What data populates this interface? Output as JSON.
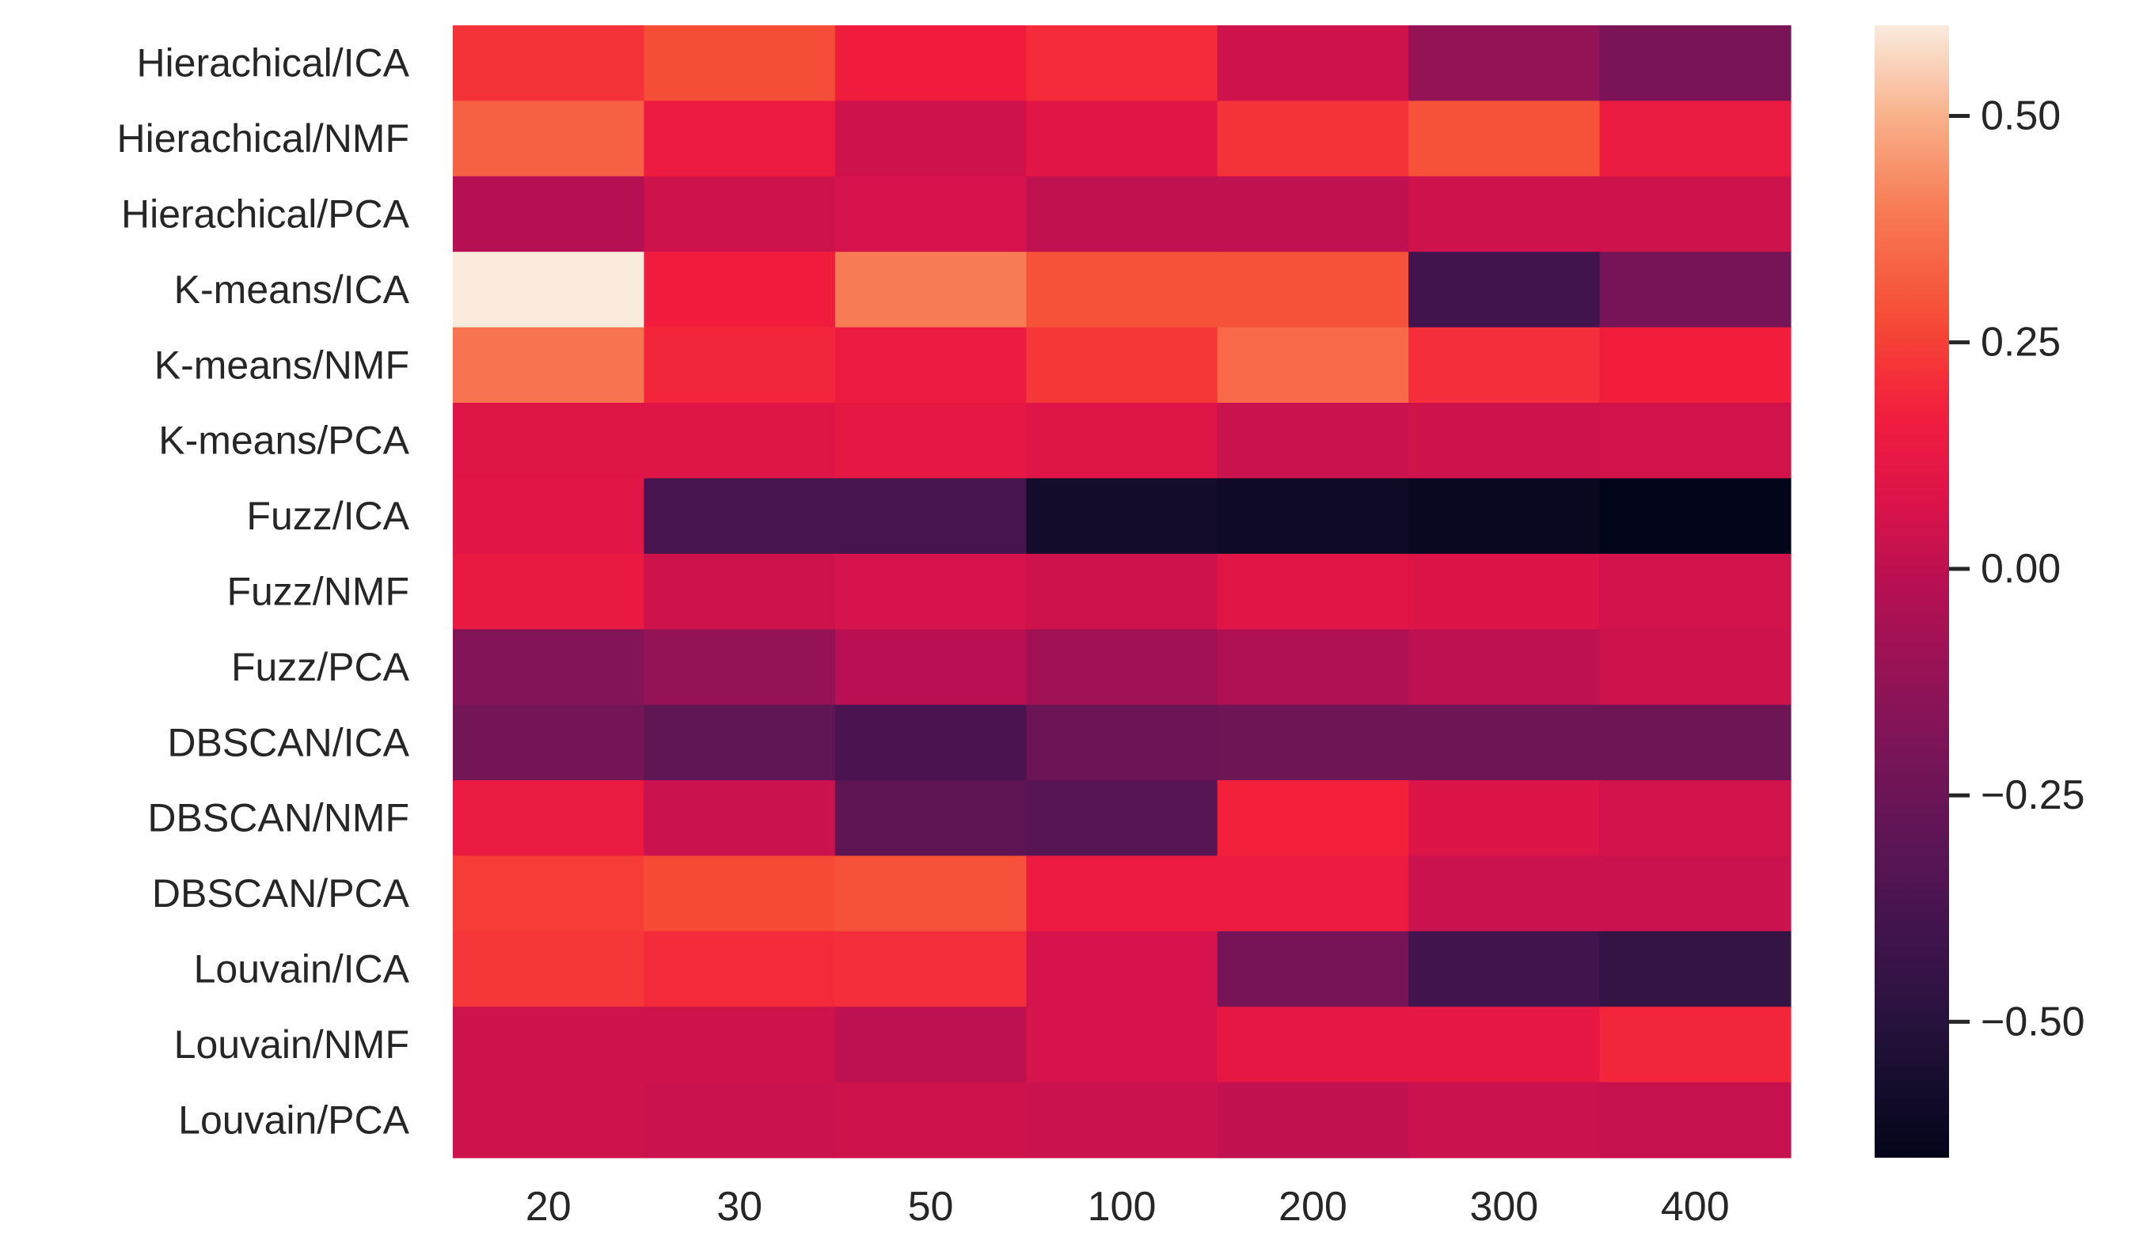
{
  "chart_data": {
    "type": "heatmap",
    "title": "",
    "xlabel": "",
    "ylabel": "",
    "x_categories": [
      "20",
      "30",
      "50",
      "100",
      "200",
      "300",
      "400"
    ],
    "y_categories": [
      "Hierachical/ICA",
      "Hierachical/NMF",
      "Hierachical/PCA",
      "K-means/ICA",
      "K-means/NMF",
      "K-means/PCA",
      "Fuzz/ICA",
      "Fuzz/NMF",
      "Fuzz/PCA",
      "DBSCAN/ICA",
      "DBSCAN/NMF",
      "DBSCAN/PCA",
      "Louvain/ICA",
      "Louvain/NMF",
      "Louvain/PCA"
    ],
    "values": [
      [
        0.22,
        0.28,
        0.16,
        0.2,
        0.04,
        -0.12,
        -0.2
      ],
      [
        0.33,
        0.15,
        0.04,
        0.1,
        0.22,
        0.29,
        0.14
      ],
      [
        -0.02,
        0.04,
        0.06,
        0.01,
        0.01,
        0.04,
        0.04
      ],
      [
        0.6,
        0.16,
        0.4,
        0.29,
        0.29,
        -0.4,
        -0.21
      ],
      [
        0.38,
        0.19,
        0.15,
        0.23,
        0.35,
        0.21,
        0.17
      ],
      [
        0.09,
        0.09,
        0.12,
        0.09,
        0.03,
        0.04,
        0.05
      ],
      [
        0.1,
        -0.38,
        -0.38,
        -0.58,
        -0.6,
        -0.62,
        -0.65
      ],
      [
        0.13,
        0.04,
        0.06,
        0.04,
        0.1,
        0.08,
        0.05
      ],
      [
        -0.17,
        -0.12,
        -0.01,
        -0.08,
        -0.04,
        0.0,
        0.04
      ],
      [
        -0.22,
        -0.29,
        -0.37,
        -0.25,
        -0.24,
        -0.24,
        -0.24
      ],
      [
        0.14,
        0.03,
        -0.3,
        -0.32,
        0.18,
        0.08,
        0.05
      ],
      [
        0.24,
        0.27,
        0.29,
        0.15,
        0.15,
        0.03,
        0.03
      ],
      [
        0.23,
        0.2,
        0.21,
        0.06,
        -0.21,
        -0.4,
        -0.45
      ],
      [
        0.04,
        0.04,
        0.0,
        0.06,
        0.12,
        0.12,
        0.19
      ],
      [
        0.04,
        0.03,
        0.04,
        0.03,
        0.01,
        0.03,
        0.02
      ]
    ],
    "colorbar": {
      "colormap": "rocket",
      "vmin": -0.65,
      "vmax": 0.6,
      "ticks": [
        0.5,
        0.25,
        0.0,
        -0.25,
        -0.5
      ],
      "tick_labels": [
        "0.50",
        "0.25",
        "0.00",
        "−0.25",
        "−0.50"
      ]
    },
    "grid": false,
    "legend": "colorbar-right"
  }
}
